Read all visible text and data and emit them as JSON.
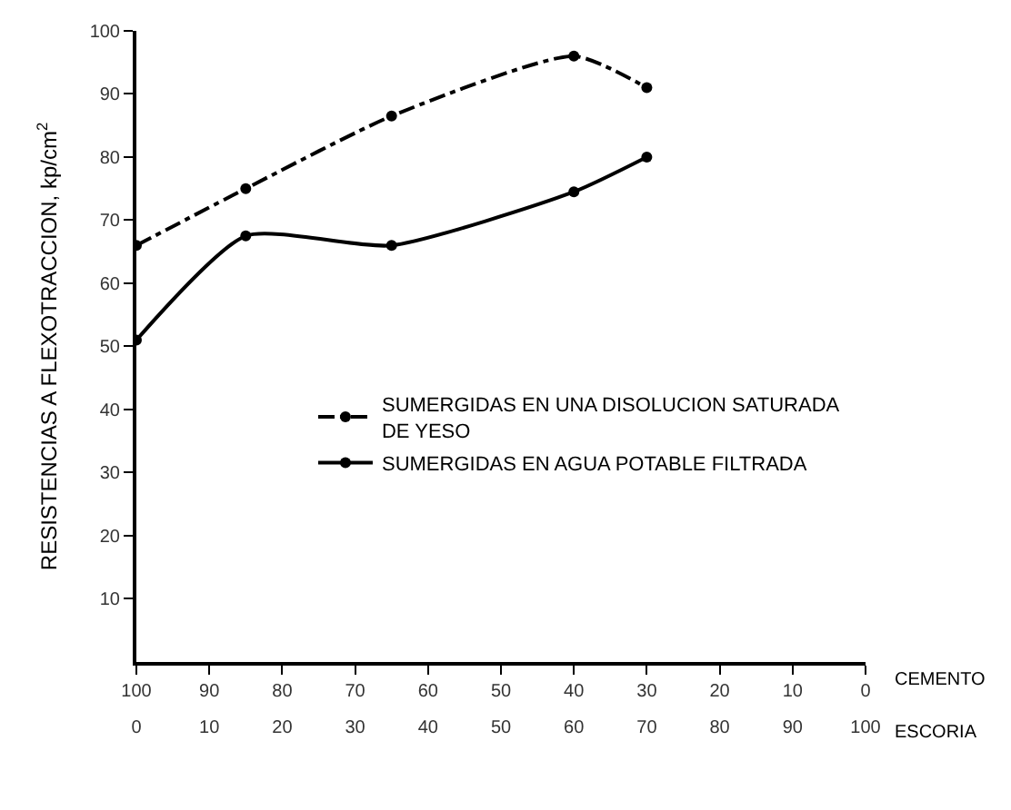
{
  "chart_data": {
    "type": "line",
    "ylabel": "RESISTENCIAS A FLEXOTRACCION, kp/cm$^{2}$",
    "xlabel": "ESCORIA",
    "x2label": "CEMENTO",
    "xlim": [
      0,
      100
    ],
    "xticks": [
      0,
      10,
      20,
      30,
      40,
      50,
      60,
      70,
      80,
      90,
      100
    ],
    "x2lim": [
      100,
      0
    ],
    "x2ticks": [
      100,
      90,
      80,
      70,
      60,
      50,
      40,
      30,
      20,
      10,
      0
    ],
    "ylim": [
      0,
      100
    ],
    "yticks": [
      10,
      20,
      30,
      40,
      50,
      60,
      70,
      80,
      90,
      100
    ],
    "x": [
      0,
      15,
      35,
      60,
      70
    ],
    "series": [
      {
        "name": "SUMERGIDAS EN UNA DISOLUCION SATURADA\nDE YESO",
        "color": "#000000",
        "values": [
          66,
          75,
          86.5,
          96,
          91
        ],
        "line_style": "dashed"
      },
      {
        "name": "SUMERGIDAS EN AGUA POTABLE FILTRADA",
        "color": "#000000",
        "values": [
          51,
          67.5,
          66,
          74.5,
          80
        ],
        "line_style": "solid"
      }
    ],
    "marker": "circle",
    "legend": "right"
  }
}
